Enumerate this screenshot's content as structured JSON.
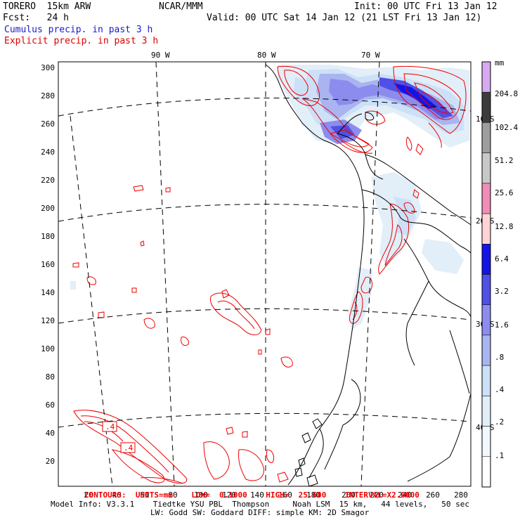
{
  "header": {
    "model": "TORERO  15km ARW",
    "org": "NCAR/MMM",
    "init": "Init: 00 UTC Fri 13 Jan 12",
    "fcst": "Fcst:   24 h",
    "valid": "Valid: 00 UTC Sat 14 Jan 12 (21 LST Fri 13 Jan 12)",
    "field1": "Cumulus precip. in past 3 h",
    "field2": "Explicit precip. in past 3 h",
    "field1_color": "#1a1acc",
    "field2_color": "#dd0000"
  },
  "map": {
    "lon_labels": [
      "90 W",
      "80 W",
      "70 W"
    ],
    "lat_labels": [
      "10 S",
      "20 S",
      "30 S",
      "40 S"
    ],
    "y_ticks": [
      "300",
      "280",
      "260",
      "240",
      "220",
      "200",
      "180",
      "160",
      "140",
      "120",
      "100",
      "80",
      "60",
      "40",
      "20"
    ],
    "x_ticks": [
      "20",
      "40",
      "60",
      "80",
      "100",
      "120",
      "140",
      "160",
      "180",
      "200",
      "220",
      "240",
      "260",
      "280"
    ],
    "box_labels": [
      ".4",
      ".4"
    ]
  },
  "colorbar": {
    "unit": "mm",
    "labels": [
      "204.8",
      "102.4",
      "51.2",
      "25.6",
      "12.8",
      "6.4",
      "3.2",
      "1.6",
      ".8",
      ".4",
      ".2",
      ".1"
    ],
    "colors": [
      "#d7a9f0",
      "#3c3c3c",
      "#9e9e9e",
      "#c8c8c8",
      "#f08cb8",
      "#ffd4d4",
      "#1414e6",
      "#5050e6",
      "#8c8cee",
      "#aab4f0",
      "#cce0f8",
      "#e2eef8",
      "#f2f8fc",
      "#ffffff"
    ]
  },
  "footer": {
    "contours": "CONTOURS:  UNITS=mm    LOW=  0.1000    HIGH=  25.600    INTERVAL=X2.0000",
    "info1": "Model Info: V3.3.1    Tiedtke YSU PBL  Thompson     Noah LSM  15 km,   44 levels,   50 sec",
    "info2": "LW: Godd SW: Goddard DIFF: simple KM: 2D Smagor"
  }
}
